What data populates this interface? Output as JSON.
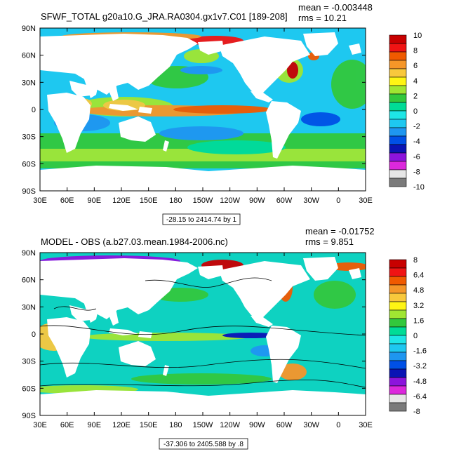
{
  "colors": {
    "ocean_background": "#1ec8f0",
    "land": "#ffffff",
    "frame": "#000000"
  },
  "panels": [
    {
      "title": "SFWF_TOTAL g20a10.G_JRA.RA0304.gx1v7.C01 [189-208]",
      "mean_label": "mean = -0.003448",
      "rms_label": "rms = 10.21",
      "range_label": "-28.15 to 2414.74 by 1",
      "colorbar_labels": [
        "10",
        "8",
        "6",
        "4",
        "2",
        "0",
        "-2",
        "-4",
        "-6",
        "-8",
        "-10"
      ],
      "colorbar_colors": [
        "#c80000",
        "#f01414",
        "#f05a00",
        "#f59628",
        "#f8c83c",
        "#fff514",
        "#a0e632",
        "#32c83c",
        "#00dc96",
        "#1ee6e6",
        "#1ec8f0",
        "#1e96f0",
        "#0050e6",
        "#0a14b4",
        "#8c14dc",
        "#dc28dc",
        "#e6e6e6",
        "#7a7a7a"
      ]
    },
    {
      "title": "MODEL - OBS (a.b27.03.mean.1984-2006.nc)",
      "mean_label": "mean = -0.01752",
      "rms_label": "rms = 9.851",
      "range_label": "-37.306 to 2405.588 by .8",
      "colorbar_labels": [
        "8",
        "6.4",
        "4.8",
        "3.2",
        "1.6",
        "0",
        "-1.6",
        "-3.2",
        "-4.8",
        "-6.4",
        "-8"
      ],
      "colorbar_colors": [
        "#c80000",
        "#f01414",
        "#f05a00",
        "#f59628",
        "#f8c83c",
        "#fff514",
        "#a0e632",
        "#32c83c",
        "#00dc96",
        "#1ee6e6",
        "#1ec8f0",
        "#1e96f0",
        "#0050e6",
        "#0a14b4",
        "#8c14dc",
        "#dc28dc",
        "#e6e6e6",
        "#7a7a7a"
      ]
    }
  ],
  "map": {
    "lat_ticks": [
      "90N",
      "60N",
      "30N",
      "0",
      "30S",
      "60S",
      "90S"
    ],
    "lon_ticks": [
      "30E",
      "60E",
      "90E",
      "120E",
      "150E",
      "180",
      "150W",
      "120W",
      "90W",
      "60W",
      "30W",
      "0",
      "30E"
    ]
  }
}
